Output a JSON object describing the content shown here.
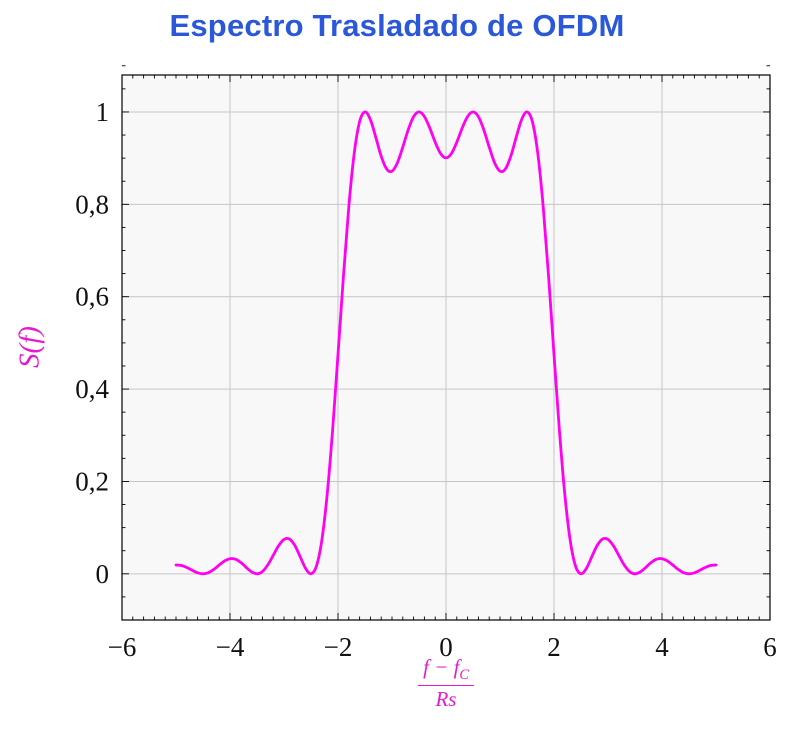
{
  "chart_data": {
    "type": "line",
    "title": "Espectro Trasladado de OFDM",
    "title_color": "#2a58d8",
    "ylabel": "S(f)",
    "xlabel_fraction": {
      "num_base": "f − f",
      "num_sub": "C",
      "den": "Rs"
    },
    "axis_label_color": "#e619d2",
    "curve_color": "#ff00f0",
    "xlim": [
      -6,
      6
    ],
    "ylim": [
      -0.1,
      1.08
    ],
    "xticks": {
      "values": [
        -6,
        -4,
        -2,
        0,
        2,
        4,
        6
      ],
      "labels": [
        "−6",
        "−4",
        "−2",
        "0",
        "2",
        "4",
        "6"
      ]
    },
    "yticks": {
      "values": [
        0,
        0.2,
        0.4,
        0.6,
        0.8,
        1
      ],
      "labels": [
        "0",
        "0,2",
        "0,4",
        "0,6",
        "0,8",
        "1"
      ]
    },
    "x_minor_step": 0.2,
    "y_minor_step": 0.05,
    "grid": true,
    "grid_color": "#c6c6c6",
    "plot_bg": "#f8f8f8",
    "frame_color": "#000000",
    "legend": false,
    "series": [
      {
        "name": "S(f)",
        "x_start": -5,
        "x_step": 0.1,
        "y": [
          0.019,
          0.018,
          0.0137,
          0.0076,
          0.0022,
          0,
          0.0025,
          0.0095,
          0.019,
          0.0279,
          0.0328,
          0.0317,
          0.0246,
          0.0139,
          0.0042,
          0,
          0.0049,
          0.0192,
          0.0399,
          0.0608,
          0.0745,
          0.0753,
          0.0615,
          0.0369,
          0.0118,
          0,
          0.0164,
          0.0724,
          0.1722,
          0.311,
          0.4748,
          0.6434,
          0.7947,
          0.9101,
          0.9788,
          1,
          0.9833,
          0.9451,
          0.9042,
          0.8767,
          0.8718,
          0.89,
          0.924,
          0.9613,
          0.9897,
          1,
          0.9902,
          0.965,
          0.9344,
          0.9099,
          0.9006,
          0.9099,
          0.9344,
          0.965,
          0.9902,
          1,
          0.9897,
          0.9613,
          0.924,
          0.89,
          0.8718,
          0.8767,
          0.9042,
          0.9451,
          0.9833,
          1,
          0.9788,
          0.9101,
          0.7947,
          0.6434,
          0.4748,
          0.311,
          0.1722,
          0.0724,
          0.0164,
          0,
          0.0118,
          0.0369,
          0.0615,
          0.0753,
          0.0745,
          0.0608,
          0.0399,
          0.0192,
          0.0049,
          0,
          0.0042,
          0.0139,
          0.0246,
          0.0317,
          0.0328,
          0.0279,
          0.019,
          0.0095,
          0.0025,
          0,
          0.0022,
          0.0076,
          0.0137,
          0.018,
          0.019
        ]
      }
    ]
  }
}
